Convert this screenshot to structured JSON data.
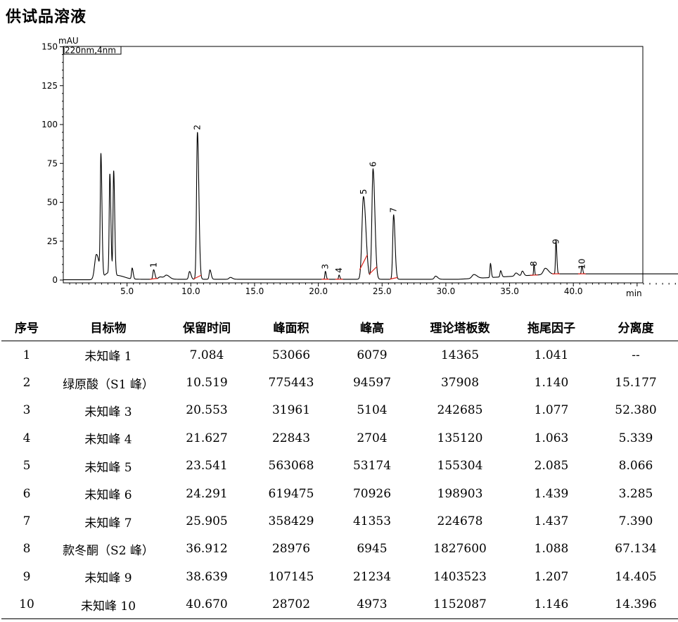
{
  "page": {
    "title": "供试品溶液"
  },
  "chart_data": {
    "type": "line",
    "yunit": "mAU",
    "xunit": "min",
    "legend_box": "220nm,4nm",
    "xlim": [
      0,
      50.3
    ],
    "ylim": [
      0,
      150
    ],
    "xticks": [
      5.0,
      10.0,
      15.0,
      20.0,
      25.0,
      30.0,
      35.0,
      40.0
    ],
    "xtick_labels": [
      "5.0",
      "10.0",
      "15.0",
      "20.0",
      "25.0",
      "30.0",
      "35.0",
      "40.0"
    ],
    "yticks": [
      0,
      25,
      50,
      75,
      100,
      125,
      150
    ],
    "ytick_labels": [
      "0",
      "25",
      "50",
      "75",
      "100",
      "125",
      "150"
    ],
    "baseline": 0.5,
    "background_peaks": [
      {
        "rt": 2.6,
        "h": 16,
        "w": 0.14
      },
      {
        "rt": 2.95,
        "h": 76,
        "w": 0.05
      },
      {
        "rt": 3.5,
        "h": 4,
        "w": 0.25
      },
      {
        "rt": 3.65,
        "h": 64,
        "w": 0.05
      },
      {
        "rt": 3.95,
        "h": 67,
        "w": 0.05
      },
      {
        "rt": 4.4,
        "h": 2,
        "w": 0.3
      },
      {
        "rt": 5.4,
        "h": 7,
        "w": 0.05
      },
      {
        "rt": 7.6,
        "h": 1.5,
        "w": 0.15
      },
      {
        "rt": 8.1,
        "h": 2.5,
        "w": 0.15
      },
      {
        "rt": 9.9,
        "h": 5,
        "w": 0.07
      },
      {
        "rt": 11.5,
        "h": 6,
        "w": 0.06
      },
      {
        "rt": 13.1,
        "h": 1.2,
        "w": 0.1
      },
      {
        "rt": 29.2,
        "h": 2,
        "w": 0.1
      },
      {
        "rt": 32.2,
        "h": 2.5,
        "w": 0.15
      },
      {
        "rt": 33.5,
        "h": 9,
        "w": 0.04
      },
      {
        "rt": 34.3,
        "h": 4,
        "w": 0.05
      },
      {
        "rt": 35.5,
        "h": 2,
        "w": 0.1
      },
      {
        "rt": 36.0,
        "h": 3,
        "w": 0.07
      },
      {
        "rt": 37.8,
        "h": 4,
        "w": 0.15
      }
    ],
    "peaks": [
      {
        "no": "1",
        "rt": 7.084,
        "h": 6.1,
        "w": 0.06
      },
      {
        "no": "2",
        "rt": 10.519,
        "h": 94.6,
        "w": 0.07
      },
      {
        "no": "3",
        "rt": 20.553,
        "h": 5.1,
        "w": 0.04
      },
      {
        "no": "4",
        "rt": 21.627,
        "h": 2.7,
        "w": 0.04
      },
      {
        "no": "5",
        "rt": 23.541,
        "h": 53.2,
        "w": 0.12
      },
      {
        "no": "6",
        "rt": 24.291,
        "h": 70.9,
        "w": 0.09
      },
      {
        "no": "7",
        "rt": 25.905,
        "h": 41.4,
        "w": 0.07
      },
      {
        "no": "8",
        "rt": 36.912,
        "h": 6.9,
        "w": 0.03
      },
      {
        "no": "9",
        "rt": 38.639,
        "h": 21.2,
        "w": 0.04
      },
      {
        "no": "10",
        "rt": 40.67,
        "h": 5.0,
        "w": 0.04
      }
    ],
    "colors": {
      "trace": "#000000",
      "integration_marks": "#e0221a"
    }
  },
  "table": {
    "headers": [
      "序号",
      "目标物",
      "保留时间",
      "峰面积",
      "峰高",
      "理论塔板数",
      "拖尾因子",
      "分离度"
    ],
    "rows": [
      [
        "1",
        "未知峰 1",
        "7.084",
        "53066",
        "6079",
        "14365",
        "1.041",
        "--"
      ],
      [
        "2",
        "绿原酸（S1 峰）",
        "10.519",
        "775443",
        "94597",
        "37908",
        "1.140",
        "15.177"
      ],
      [
        "3",
        "未知峰 3",
        "20.553",
        "31961",
        "5104",
        "242685",
        "1.077",
        "52.380"
      ],
      [
        "4",
        "未知峰 4",
        "21.627",
        "22843",
        "2704",
        "135120",
        "1.063",
        "5.339"
      ],
      [
        "5",
        "未知峰 5",
        "23.541",
        "563068",
        "53174",
        "155304",
        "2.085",
        "8.066"
      ],
      [
        "6",
        "未知峰 6",
        "24.291",
        "619475",
        "70926",
        "198903",
        "1.439",
        "3.285"
      ],
      [
        "7",
        "未知峰 7",
        "25.905",
        "358429",
        "41353",
        "224678",
        "1.437",
        "7.390"
      ],
      [
        "8",
        "款冬酮（S2 峰）",
        "36.912",
        "28976",
        "6945",
        "1827600",
        "1.088",
        "67.134"
      ],
      [
        "9",
        "未知峰 9",
        "38.639",
        "107145",
        "21234",
        "1403523",
        "1.207",
        "14.405"
      ],
      [
        "10",
        "未知峰 10",
        "40.670",
        "28702",
        "4973",
        "1152087",
        "1.146",
        "14.396"
      ]
    ]
  }
}
